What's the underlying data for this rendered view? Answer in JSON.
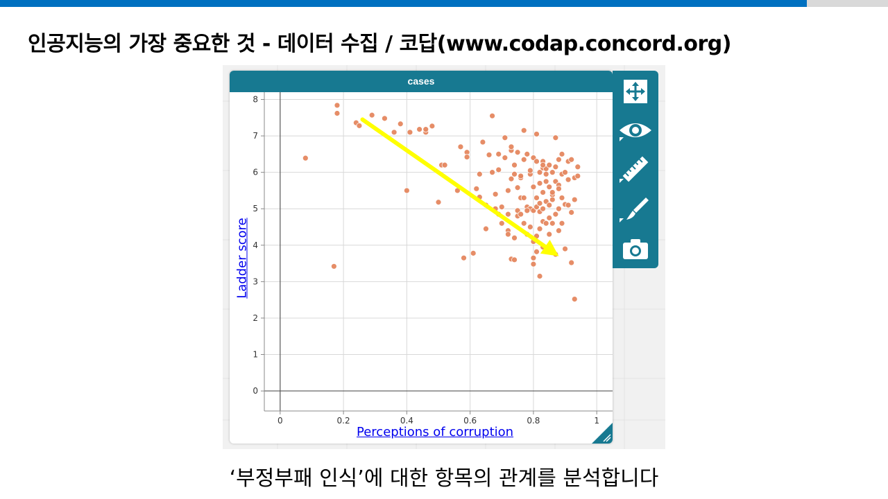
{
  "slide": {
    "title": "인공지능의 가장 중요한 것 - 데이터 수집 / 코답(www.codap.concord.org)",
    "caption": "‘부정부패 인식’에 대한 항목의 관계를 분석합니다"
  },
  "colors": {
    "top_bar": "#0070c0",
    "tile_header": "#177991",
    "point": "#e5875f",
    "arrow": "#ffff00",
    "axis_link": "#0000ee"
  },
  "graph": {
    "tile_title": "cases",
    "inspector_icons": [
      "move-icon",
      "eye-icon",
      "ruler-icon",
      "paintbrush-icon",
      "camera-icon"
    ]
  },
  "chart_data": {
    "type": "scatter",
    "xlabel": "Perceptions of corruption",
    "ylabel": "Ladder score",
    "xlim": [
      -0.05,
      1.05
    ],
    "ylim": [
      -0.55,
      8.2
    ],
    "x_ticks": [
      "0",
      "0.2",
      "0.4",
      "0.6",
      "0.8",
      "1"
    ],
    "y_ticks": [
      "0",
      "1",
      "2",
      "3",
      "4",
      "5",
      "6",
      "7",
      "8"
    ],
    "grid": true,
    "annotation": {
      "type": "arrow",
      "from": [
        0.26,
        7.45
      ],
      "to": [
        0.88,
        3.7
      ]
    },
    "points": [
      [
        0.18,
        7.84
      ],
      [
        0.18,
        7.62
      ],
      [
        0.24,
        7.36
      ],
      [
        0.25,
        7.28
      ],
      [
        0.29,
        7.57
      ],
      [
        0.33,
        7.48
      ],
      [
        0.36,
        7.1
      ],
      [
        0.38,
        7.33
      ],
      [
        0.41,
        7.1
      ],
      [
        0.44,
        7.18
      ],
      [
        0.46,
        7.1
      ],
      [
        0.46,
        7.18
      ],
      [
        0.48,
        7.27
      ],
      [
        0.08,
        6.39
      ],
      [
        0.17,
        3.42
      ],
      [
        0.4,
        5.5
      ],
      [
        0.5,
        5.18
      ],
      [
        0.51,
        6.2
      ],
      [
        0.52,
        6.2
      ],
      [
        0.56,
        5.5
      ],
      [
        0.57,
        6.7
      ],
      [
        0.58,
        3.65
      ],
      [
        0.59,
        6.55
      ],
      [
        0.59,
        6.42
      ],
      [
        0.61,
        3.78
      ],
      [
        0.62,
        5.55
      ],
      [
        0.63,
        5.32
      ],
      [
        0.63,
        5.95
      ],
      [
        0.64,
        6.83
      ],
      [
        0.65,
        4.45
      ],
      [
        0.65,
        5.1
      ],
      [
        0.66,
        6.48
      ],
      [
        0.67,
        6.0
      ],
      [
        0.67,
        7.55
      ],
      [
        0.68,
        5.0
      ],
      [
        0.68,
        5.4
      ],
      [
        0.69,
        4.85
      ],
      [
        0.69,
        6.5
      ],
      [
        0.69,
        6.07
      ],
      [
        0.7,
        5.05
      ],
      [
        0.71,
        6.95
      ],
      [
        0.71,
        6.4
      ],
      [
        0.72,
        4.4
      ],
      [
        0.72,
        4.3
      ],
      [
        0.72,
        4.85
      ],
      [
        0.73,
        6.6
      ],
      [
        0.73,
        6.7
      ],
      [
        0.73,
        5.82
      ],
      [
        0.73,
        3.62
      ],
      [
        0.74,
        3.6
      ],
      [
        0.74,
        6.2
      ],
      [
        0.74,
        4.2
      ],
      [
        0.75,
        6.55
      ],
      [
        0.75,
        5.58
      ],
      [
        0.75,
        4.95
      ],
      [
        0.75,
        4.8
      ],
      [
        0.76,
        5.85
      ],
      [
        0.76,
        5.3
      ],
      [
        0.76,
        4.85
      ],
      [
        0.77,
        6.35
      ],
      [
        0.77,
        7.15
      ],
      [
        0.77,
        5.3
      ],
      [
        0.78,
        5.05
      ],
      [
        0.78,
        4.3
      ],
      [
        0.78,
        6.5
      ],
      [
        0.79,
        5.95
      ],
      [
        0.79,
        5.0
      ],
      [
        0.79,
        4.5
      ],
      [
        0.8,
        6.4
      ],
      [
        0.8,
        5.6
      ],
      [
        0.8,
        4.95
      ],
      [
        0.8,
        4.1
      ],
      [
        0.8,
        3.65
      ],
      [
        0.8,
        3.48
      ],
      [
        0.81,
        7.05
      ],
      [
        0.81,
        6.3
      ],
      [
        0.81,
        5.3
      ],
      [
        0.81,
        5.05
      ],
      [
        0.81,
        4.25
      ],
      [
        0.81,
        3.82
      ],
      [
        0.82,
        6.0
      ],
      [
        0.82,
        5.7
      ],
      [
        0.82,
        5.15
      ],
      [
        0.82,
        4.92
      ],
      [
        0.82,
        3.15
      ],
      [
        0.83,
        6.3
      ],
      [
        0.83,
        6.12
      ],
      [
        0.83,
        5.45
      ],
      [
        0.83,
        4.65
      ],
      [
        0.83,
        3.95
      ],
      [
        0.84,
        6.1
      ],
      [
        0.84,
        5.75
      ],
      [
        0.84,
        5.2
      ],
      [
        0.84,
        4.6
      ],
      [
        0.85,
        6.2
      ],
      [
        0.85,
        5.6
      ],
      [
        0.85,
        5.1
      ],
      [
        0.85,
        4.75
      ],
      [
        0.85,
        4.3
      ],
      [
        0.85,
        3.85
      ],
      [
        0.86,
        6.0
      ],
      [
        0.86,
        5.38
      ],
      [
        0.86,
        4.6
      ],
      [
        0.87,
        6.95
      ],
      [
        0.87,
        6.15
      ],
      [
        0.87,
        5.75
      ],
      [
        0.87,
        4.85
      ],
      [
        0.87,
        3.75
      ],
      [
        0.88,
        6.35
      ],
      [
        0.88,
        5.65
      ],
      [
        0.88,
        5.0
      ],
      [
        0.88,
        4.4
      ],
      [
        0.89,
        6.5
      ],
      [
        0.89,
        5.95
      ],
      [
        0.89,
        4.6
      ],
      [
        0.9,
        6.0
      ],
      [
        0.9,
        5.12
      ],
      [
        0.91,
        6.3
      ],
      [
        0.91,
        5.8
      ],
      [
        0.91,
        5.1
      ],
      [
        0.92,
        6.35
      ],
      [
        0.92,
        4.9
      ],
      [
        0.92,
        3.52
      ],
      [
        0.93,
        5.25
      ],
      [
        0.93,
        5.85
      ],
      [
        0.93,
        2.52
      ],
      [
        0.94,
        6.15
      ],
      [
        0.94,
        5.9
      ],
      [
        0.9,
        3.9
      ],
      [
        0.86,
        5.45
      ],
      [
        0.79,
        6.05
      ],
      [
        0.76,
        5.9
      ],
      [
        0.83,
        6.2
      ],
      [
        0.88,
        5.55
      ],
      [
        0.84,
        5.95
      ],
      [
        0.78,
        4.95
      ],
      [
        0.72,
        5.5
      ],
      [
        0.74,
        5.95
      ],
      [
        0.86,
        5.25
      ],
      [
        0.82,
        4.45
      ],
      [
        0.7,
        4.6
      ],
      [
        0.77,
        4.6
      ],
      [
        0.89,
        5.3
      ],
      [
        0.83,
        5.0
      ]
    ]
  }
}
